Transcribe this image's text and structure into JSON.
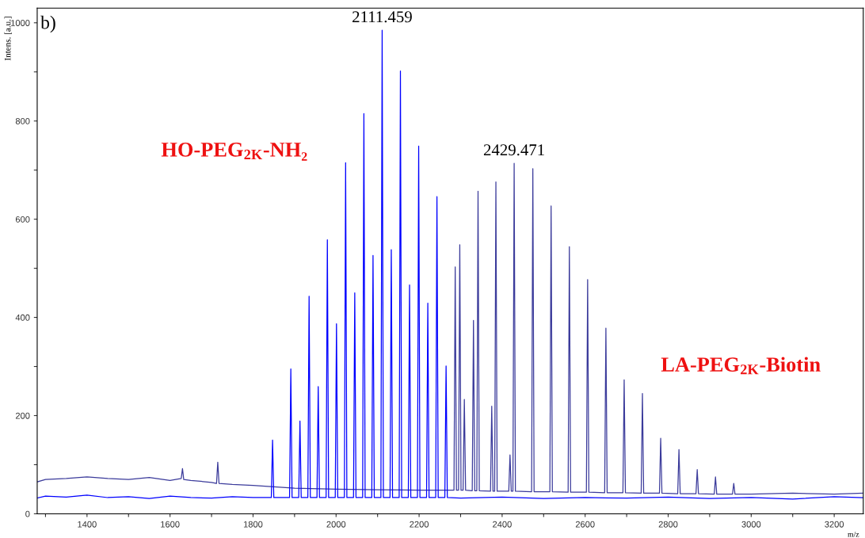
{
  "chart_data": {
    "type": "line",
    "xlabel": "m/z",
    "ylabel": "Intens. [a.u.]",
    "xlim": [
      1280,
      3270
    ],
    "xticks": [
      {
        "value": 1300,
        "label": null
      },
      1400,
      {
        "value": 1500,
        "label": null
      },
      1600,
      {
        "value": 1700,
        "label": null
      },
      1800,
      {
        "value": 1900,
        "label": null
      },
      2000,
      {
        "value": 2100,
        "label": null
      },
      2200,
      {
        "value": 2300,
        "label": null
      },
      2400,
      {
        "value": 2500,
        "label": null
      },
      2600,
      {
        "value": 2700,
        "label": null
      },
      2800,
      {
        "value": 2900,
        "label": null
      },
      3000,
      {
        "value": 3100,
        "label": null
      },
      3200
    ],
    "ylim": [
      0,
      1030
    ],
    "yticks": [
      0,
      {
        "value": 100,
        "label": null
      },
      200,
      {
        "value": 300,
        "label": null
      },
      400,
      {
        "value": 500,
        "label": null
      },
      600,
      {
        "value": 700,
        "label": null
      },
      800,
      {
        "value": 900,
        "label": null
      },
      1000
    ],
    "grid": false,
    "annotations": [
      "b)",
      {
        "text": "2111.459",
        "x": 2111,
        "y": 985
      },
      {
        "text": "2429.471",
        "x": 2429,
        "y": 714
      },
      "HO-PEG$_{2K}$-NH₂",
      "LA-PEG$_{2K}$-Biotin"
    ],
    "series": [
      {
        "color": "#3b3b9b",
        "x": [
          1280,
          1300,
          1350,
          1400,
          1450,
          1500,
          1550,
          1600,
          1627,
          1630,
          1633,
          1650,
          1700,
          1712,
          1715,
          1718,
          1750,
          1800,
          1850,
          1900,
          2000,
          2100,
          2200,
          2270,
          2284,
          2287,
          2290,
          2295,
          2298,
          2301,
          2306,
          2309,
          2312,
          2328,
          2331,
          2334,
          2339,
          2342,
          2345,
          2372,
          2375,
          2378,
          2382,
          2385,
          2388,
          2416,
          2419,
          2422,
          2426,
          2429,
          2432,
          2471,
          2474,
          2477,
          2515,
          2518,
          2521,
          2559,
          2562,
          2565,
          2603,
          2606,
          2609,
          2647,
          2650,
          2653,
          2691,
          2694,
          2697,
          2735,
          2738,
          2741,
          2779,
          2782,
          2785,
          2823,
          2826,
          2829,
          2867,
          2870,
          2873,
          2911,
          2914,
          2917,
          2955,
          2958,
          2961,
          3000,
          3100,
          3200,
          3270
        ],
        "values": [
          65,
          70,
          72,
          75,
          72,
          70,
          74,
          68,
          72,
          92,
          70,
          68,
          64,
          62,
          105,
          62,
          60,
          58,
          55,
          52,
          50,
          49,
          48,
          48,
          48,
          503,
          48,
          48,
          548,
          48,
          48,
          233,
          48,
          47,
          394,
          47,
          47,
          657,
          47,
          46,
          219,
          46,
          46,
          676,
          46,
          46,
          120,
          46,
          46,
          714,
          46,
          45,
          703,
          45,
          45,
          627,
          45,
          44,
          544,
          44,
          44,
          477,
          44,
          43,
          378,
          43,
          43,
          273,
          43,
          42,
          245,
          42,
          42,
          154,
          42,
          41,
          131,
          41,
          41,
          90,
          41,
          40,
          75,
          40,
          40,
          62,
          40,
          40,
          42,
          40,
          42
        ]
      },
      {
        "color": "#0000ff",
        "x": [
          1280,
          1300,
          1350,
          1400,
          1450,
          1500,
          1550,
          1600,
          1650,
          1700,
          1750,
          1800,
          1844,
          1847,
          1850,
          1888,
          1891,
          1894,
          1910,
          1913,
          1916,
          1932,
          1935,
          1938,
          1954,
          1957,
          1960,
          1976,
          1979,
          1982,
          1998,
          2001,
          2004,
          2020,
          2023,
          2026,
          2042,
          2045,
          2048,
          2064,
          2067,
          2070,
          2086,
          2089,
          2092,
          2108,
          2111,
          2114,
          2130,
          2133,
          2136,
          2152,
          2155,
          2158,
          2174,
          2177,
          2180,
          2196,
          2199,
          2202,
          2218,
          2221,
          2224,
          2240,
          2243,
          2246,
          2262,
          2265,
          2268,
          2300,
          2400,
          2500,
          2600,
          2700,
          2800,
          2900,
          3000,
          3100,
          3200,
          3270
        ],
        "values": [
          32,
          36,
          34,
          38,
          33,
          35,
          31,
          36,
          33,
          32,
          35,
          33,
          33,
          150,
          33,
          33,
          295,
          33,
          33,
          189,
          33,
          33,
          443,
          33,
          33,
          259,
          33,
          33,
          558,
          33,
          33,
          387,
          33,
          33,
          715,
          33,
          33,
          450,
          33,
          33,
          815,
          33,
          33,
          526,
          33,
          33,
          985,
          33,
          33,
          538,
          33,
          33,
          902,
          33,
          33,
          466,
          33,
          33,
          749,
          33,
          33,
          429,
          33,
          33,
          646,
          33,
          33,
          301,
          33,
          32,
          34,
          31,
          33,
          32,
          34,
          31,
          33,
          30,
          35,
          33
        ]
      }
    ]
  }
}
